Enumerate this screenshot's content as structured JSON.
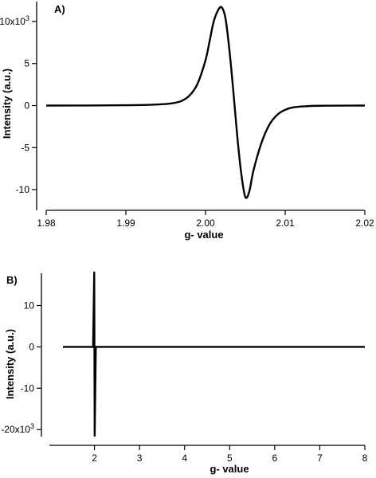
{
  "chart_data": [
    {
      "type": "line",
      "panel_label": "A)",
      "xlabel": "g- value",
      "ylabel": "Intensity (a.u.)",
      "xlim": [
        1.98,
        2.02
      ],
      "ylim": [
        -11.8,
        11.8
      ],
      "y_multiplier_label": "x10",
      "y_multiplier_exponent": "3",
      "x_ticks": [
        1.98,
        1.99,
        2.0,
        2.01,
        2.02
      ],
      "x_tick_labels": [
        "1.98",
        "1.99",
        "2.00",
        "2.01",
        "2.02"
      ],
      "y_ticks": [
        -10,
        -5,
        0,
        5,
        10
      ],
      "y_tick_labels": [
        "-10",
        "-5",
        "0",
        "5",
        "10"
      ],
      "grid": false,
      "series": [
        {
          "x": [
            1.98,
            1.985,
            1.99,
            1.993,
            1.995,
            1.996,
            1.997,
            1.998,
            1.999,
            2.0,
            2.0005,
            2.001,
            2.0015,
            2.002,
            2.0025,
            2.003,
            2.0035,
            2.004,
            2.0045,
            2.005,
            2.0055,
            2.006,
            2.007,
            2.008,
            2.009,
            2.01,
            2.011,
            2.013,
            2.015,
            2.02
          ],
          "y": [
            0.0,
            0.01,
            0.04,
            0.09,
            0.18,
            0.3,
            0.55,
            1.2,
            2.6,
            5.4,
            7.6,
            9.9,
            11.2,
            11.7,
            10.4,
            6.6,
            1.6,
            -3.8,
            -8.2,
            -10.9,
            -10.2,
            -7.8,
            -4.5,
            -2.3,
            -1.1,
            -0.5,
            -0.22,
            -0.06,
            -0.02,
            0.0
          ]
        }
      ]
    },
    {
      "type": "line",
      "panel_label": "B)",
      "xlabel": "g- value",
      "ylabel": "Intensity (a.u.)",
      "xlim": [
        1.0,
        8.0
      ],
      "ylim": [
        -21.5,
        18.0
      ],
      "y_multiplier_label": "x10",
      "y_multiplier_exponent": "3",
      "x_ticks": [
        2,
        3,
        4,
        5,
        6,
        7,
        8
      ],
      "x_tick_labels": [
        "2",
        "3",
        "4",
        "5",
        "6",
        "7",
        "8"
      ],
      "y_ticks": [
        -20,
        -10,
        0,
        10
      ],
      "y_tick_labels": [
        "-20",
        "-10",
        "0",
        "10"
      ],
      "grid": false,
      "series": [
        {
          "x": [
            1.3,
            1.97,
            1.995,
            2.005,
            2.03,
            8.0
          ],
          "y": [
            0.0,
            0.0,
            18.0,
            -21.5,
            0.0,
            0.0
          ]
        }
      ]
    }
  ]
}
